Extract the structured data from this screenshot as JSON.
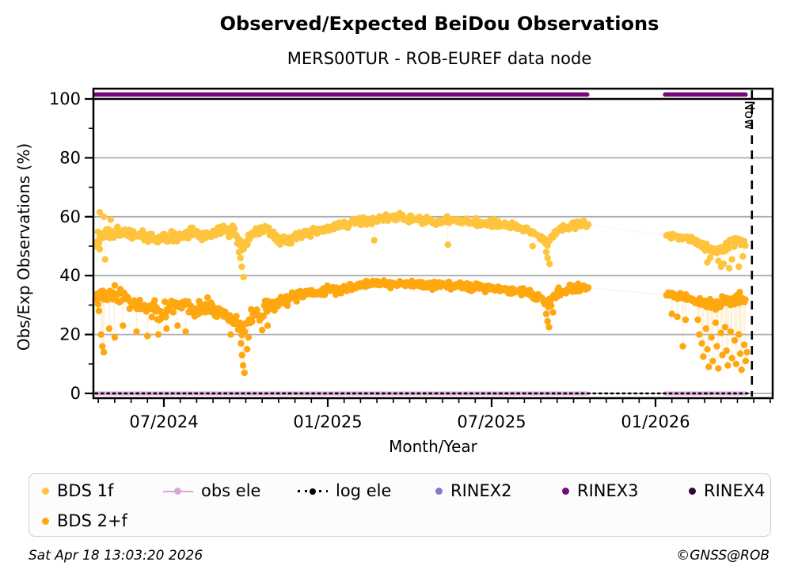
{
  "title": "Observed/Expected BeiDou Observations",
  "subtitle": "MERS00TUR - ROB-EUREF data node",
  "footer": {
    "timestamp": "Sat Apr 18 13:03:20 2026",
    "credit": "©GNSS@ROB"
  },
  "chart_data": {
    "type": "scatter",
    "title": "Observed/Expected BeiDou Observations",
    "subtitle": "MERS00TUR - ROB-EUREF data node",
    "xlabel": "Month/Year",
    "ylabel": "Obs/Exp Observations (%)",
    "time_unit": "months since 2024-04-15",
    "xlim": [
      -0.08,
      24.79
    ],
    "ylim": [
      -1.6,
      103.5
    ],
    "x_ticks": [
      {
        "t": 2.5,
        "label": "07/2024"
      },
      {
        "t": 8.5,
        "label": "01/2025"
      },
      {
        "t": 14.5,
        "label": "07/2025"
      },
      {
        "t": 20.5,
        "label": "01/2026"
      }
    ],
    "x_minor_step": 0.6,
    "y_ticks": [
      0,
      20,
      40,
      60,
      80,
      100
    ],
    "y_minor": [
      10,
      30,
      50,
      70,
      90
    ],
    "grid_color": "#adadad",
    "hline": {
      "y": 100,
      "color": "#000000"
    },
    "now": {
      "t": 24.03,
      "label": "Now"
    },
    "series": {
      "bds1f": {
        "name": "BDS 1f",
        "color": "#ffc43d",
        "marker": "dot",
        "radius": 4.2,
        "step": 0.034,
        "seed": 11,
        "segments": [
          [
            0.02,
            18.05
          ],
          [
            20.9,
            23.8
          ]
        ],
        "mean": [
          [
            0,
            52
          ],
          [
            0.6,
            55
          ],
          [
            1.2,
            54
          ],
          [
            1.8,
            53
          ],
          [
            2.4,
            52.5
          ],
          [
            3,
            53.5
          ],
          [
            3.6,
            54.5
          ],
          [
            4.2,
            53
          ],
          [
            4.6,
            56
          ],
          [
            5,
            55
          ],
          [
            5.35,
            50
          ],
          [
            5.7,
            54
          ],
          [
            6.2,
            56
          ],
          [
            6.6,
            53
          ],
          [
            7,
            52
          ],
          [
            7.6,
            54
          ],
          [
            8.2,
            55.5
          ],
          [
            8.8,
            56.5
          ],
          [
            9.4,
            58
          ],
          [
            10,
            59
          ],
          [
            10.6,
            59.5
          ],
          [
            11.2,
            60
          ],
          [
            11.8,
            59
          ],
          [
            12.4,
            58
          ],
          [
            13,
            59
          ],
          [
            13.6,
            58.5
          ],
          [
            14.2,
            58
          ],
          [
            14.8,
            57.5
          ],
          [
            15.4,
            56.5
          ],
          [
            16,
            55
          ],
          [
            16.55,
            51
          ],
          [
            16.9,
            55.5
          ],
          [
            17.4,
            57
          ],
          [
            18.05,
            57.5
          ],
          [
            20.9,
            53.5
          ],
          [
            21.4,
            53
          ],
          [
            21.9,
            52
          ],
          [
            22.3,
            49.5
          ],
          [
            22.7,
            48
          ],
          [
            23.1,
            50
          ],
          [
            23.5,
            51.5
          ],
          [
            23.8,
            51
          ]
        ],
        "amp": [
          [
            0,
            3.2
          ],
          [
            3,
            2.8
          ],
          [
            6,
            2.8
          ],
          [
            9,
            1.8
          ],
          [
            15,
            1.6
          ],
          [
            18,
            1.8
          ],
          [
            20.9,
            1.2
          ],
          [
            22,
            2.2
          ],
          [
            23.8,
            2.2
          ]
        ],
        "outliers": [
          [
            0.15,
            49
          ],
          [
            0.15,
            61.5
          ],
          [
            0.3,
            60
          ],
          [
            0.35,
            45.5
          ],
          [
            0.55,
            59
          ],
          [
            5.25,
            48
          ],
          [
            5.3,
            46
          ],
          [
            5.35,
            43
          ],
          [
            5.42,
            39.5
          ],
          [
            10.2,
            52
          ],
          [
            12.9,
            50.5
          ],
          [
            16,
            50
          ],
          [
            16.5,
            48
          ],
          [
            16.55,
            46
          ],
          [
            16.62,
            44
          ],
          [
            22.4,
            44.5
          ],
          [
            22.5,
            46
          ],
          [
            22.8,
            45
          ],
          [
            22.9,
            43
          ],
          [
            23,
            44
          ],
          [
            23.2,
            42.5
          ],
          [
            23.3,
            45.5
          ],
          [
            23.55,
            43
          ],
          [
            23.7,
            46.5
          ]
        ]
      },
      "bds2f": {
        "name": "BDS 2+f",
        "color": "#ffa70f",
        "marker": "dot",
        "radius": 4.2,
        "step": 0.034,
        "seed": 29,
        "segments": [
          [
            0.02,
            18.05
          ],
          [
            20.9,
            23.8
          ]
        ],
        "mean": [
          [
            0,
            31
          ],
          [
            0.4,
            33
          ],
          [
            0.8,
            34
          ],
          [
            1.2,
            32
          ],
          [
            1.6,
            30
          ],
          [
            2,
            28
          ],
          [
            2.4,
            27
          ],
          [
            2.8,
            29.5
          ],
          [
            3.2,
            31
          ],
          [
            3.6,
            28
          ],
          [
            4,
            30
          ],
          [
            4.4,
            28
          ],
          [
            4.8,
            26
          ],
          [
            5.2,
            24
          ],
          [
            5.35,
            21
          ],
          [
            5.7,
            26
          ],
          [
            6.1,
            28
          ],
          [
            6.5,
            30
          ],
          [
            7,
            32
          ],
          [
            7.5,
            33.5
          ],
          [
            8,
            34.5
          ],
          [
            8.6,
            35
          ],
          [
            9.2,
            36
          ],
          [
            9.8,
            37
          ],
          [
            10.4,
            37.5
          ],
          [
            11,
            37
          ],
          [
            11.6,
            37.5
          ],
          [
            12.2,
            36.5
          ],
          [
            12.8,
            37
          ],
          [
            13.4,
            36.5
          ],
          [
            14,
            36
          ],
          [
            14.6,
            35.5
          ],
          [
            15.2,
            35
          ],
          [
            15.8,
            34.5
          ],
          [
            16.3,
            32
          ],
          [
            16.55,
            30
          ],
          [
            16.9,
            34
          ],
          [
            17.4,
            35.5
          ],
          [
            18.05,
            36
          ],
          [
            20.9,
            33.5
          ],
          [
            21.4,
            33
          ],
          [
            21.9,
            32
          ],
          [
            22.3,
            30.5
          ],
          [
            22.7,
            30
          ],
          [
            23.1,
            31
          ],
          [
            23.5,
            32
          ],
          [
            23.8,
            31.5
          ]
        ],
        "amp": [
          [
            0,
            4.5
          ],
          [
            2,
            4.5
          ],
          [
            4,
            4.2
          ],
          [
            6,
            3.8
          ],
          [
            8,
            2.5
          ],
          [
            10,
            1.8
          ],
          [
            15,
            1.8
          ],
          [
            17,
            2.2
          ],
          [
            18,
            2
          ],
          [
            20.9,
            1.6
          ],
          [
            21.9,
            2
          ],
          [
            22.3,
            3
          ],
          [
            23.8,
            3.2
          ]
        ],
        "outliers": [
          [
            0.12,
            28
          ],
          [
            0.2,
            20
          ],
          [
            0.25,
            16
          ],
          [
            0.3,
            14
          ],
          [
            0.5,
            22
          ],
          [
            0.7,
            19
          ],
          [
            1,
            23
          ],
          [
            1.5,
            21
          ],
          [
            1.9,
            19.5
          ],
          [
            2.3,
            20
          ],
          [
            2.6,
            22
          ],
          [
            3,
            23
          ],
          [
            3.3,
            21
          ],
          [
            4.95,
            20
          ],
          [
            5.28,
            24
          ],
          [
            5.32,
            17
          ],
          [
            5.36,
            13
          ],
          [
            5.4,
            9.5
          ],
          [
            5.45,
            7
          ],
          [
            5.55,
            15
          ],
          [
            5.6,
            19
          ],
          [
            6.1,
            21.5
          ],
          [
            6.3,
            23
          ],
          [
            16.5,
            27
          ],
          [
            16.55,
            24.5
          ],
          [
            16.6,
            22.5
          ],
          [
            16.75,
            27.5
          ],
          [
            21.1,
            27
          ],
          [
            21.3,
            26
          ],
          [
            21.5,
            16
          ],
          [
            21.6,
            25
          ],
          [
            22.05,
            25
          ],
          [
            22.1,
            20
          ],
          [
            22.2,
            17
          ],
          [
            22.25,
            12.5
          ],
          [
            22.35,
            22
          ],
          [
            22.4,
            15
          ],
          [
            22.45,
            9
          ],
          [
            22.55,
            19
          ],
          [
            22.6,
            11
          ],
          [
            22.7,
            24
          ],
          [
            22.75,
            16
          ],
          [
            22.8,
            8.5
          ],
          [
            22.9,
            20.5
          ],
          [
            22.95,
            13
          ],
          [
            23.05,
            22.5
          ],
          [
            23.1,
            14.5
          ],
          [
            23.15,
            9.5
          ],
          [
            23.25,
            21
          ],
          [
            23.3,
            12
          ],
          [
            23.4,
            18
          ],
          [
            23.45,
            10
          ],
          [
            23.55,
            20
          ],
          [
            23.6,
            13.5
          ],
          [
            23.65,
            8
          ],
          [
            23.75,
            16.5
          ],
          [
            23.8,
            11
          ],
          [
            23.85,
            14
          ]
        ]
      },
      "obs_ele": {
        "name": "obs ele",
        "color": "#d8a7d8",
        "marker": "line-dot",
        "y": 0,
        "line_width": 5,
        "segments": [
          [
            0,
            18.0
          ],
          [
            20.85,
            23.8
          ]
        ]
      },
      "log_ele": {
        "name": "log ele",
        "color": "#000000",
        "marker": "dotted-line-dot",
        "y": 0,
        "line_width": 2.6,
        "segments": [
          [
            0,
            24.0
          ]
        ]
      },
      "rinex2": {
        "name": "RINEX2",
        "color": "#8878c8",
        "marker": "dot",
        "y": 101.5,
        "line_width": 5.5,
        "segments": []
      },
      "rinex3": {
        "name": "RINEX3",
        "color": "#750b76",
        "marker": "dot",
        "y": 101.5,
        "line_width": 5.5,
        "segments": [
          [
            0,
            18.0
          ],
          [
            20.85,
            21.92
          ],
          [
            21.98,
            23.02
          ],
          [
            23.08,
            23.8
          ]
        ]
      },
      "rinex4": {
        "name": "RINEX4",
        "color": "#2d0a33",
        "marker": "dot",
        "y": 101.5,
        "line_width": 5.5,
        "segments": []
      }
    },
    "legend": {
      "items": [
        {
          "label": "BDS 1f",
          "marker": "dot",
          "color": "#ffc43d"
        },
        {
          "label": "obs ele",
          "marker": "line-dot",
          "color": "#d8a7d8"
        },
        {
          "label": "log ele",
          "marker": "dotted-line-dot",
          "color": "#000000"
        },
        {
          "label": "RINEX2",
          "marker": "dot",
          "color": "#8878c8"
        },
        {
          "label": "RINEX3",
          "marker": "dot",
          "color": "#750b76"
        },
        {
          "label": "RINEX4",
          "marker": "dot",
          "color": "#2d0a33"
        },
        {
          "label": "BDS 2+f",
          "marker": "dot",
          "color": "#ffa70f"
        }
      ]
    }
  }
}
